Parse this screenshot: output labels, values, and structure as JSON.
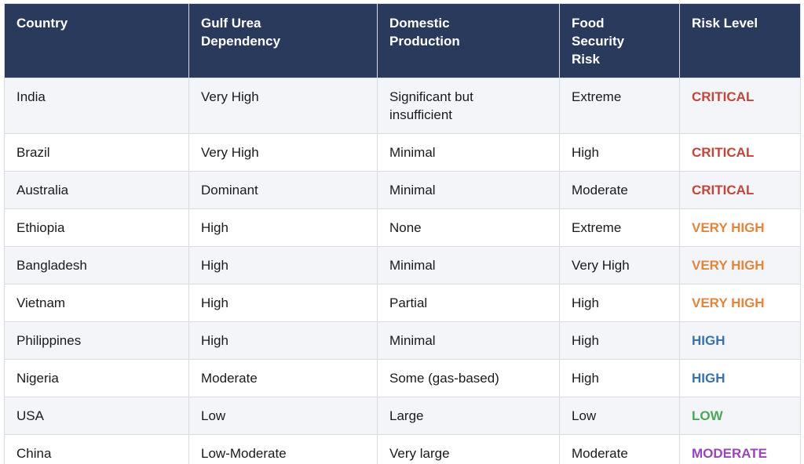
{
  "table": {
    "columns": [
      {
        "key": "country",
        "label": "Country"
      },
      {
        "key": "gulf",
        "label": "Gulf Urea Dependency"
      },
      {
        "key": "domestic",
        "label": "Domestic Production"
      },
      {
        "key": "food",
        "label": "Food Security Risk"
      },
      {
        "key": "risk",
        "label": "Risk Level"
      }
    ],
    "rows": [
      {
        "country": "India",
        "gulf": "Very High",
        "domestic": "Significant but insufficient",
        "food": "Extreme",
        "risk": "CRITICAL",
        "risk_class": "critical"
      },
      {
        "country": "Brazil",
        "gulf": "Very High",
        "domestic": "Minimal",
        "food": "High",
        "risk": "CRITICAL",
        "risk_class": "critical"
      },
      {
        "country": "Australia",
        "gulf": "Dominant",
        "domestic": "Minimal",
        "food": "Moderate",
        "risk": "CRITICAL",
        "risk_class": "critical"
      },
      {
        "country": "Ethiopia",
        "gulf": "High",
        "domestic": "None",
        "food": "Extreme",
        "risk": "VERY HIGH",
        "risk_class": "very_high"
      },
      {
        "country": "Bangladesh",
        "gulf": "High",
        "domestic": "Minimal",
        "food": "Very High",
        "risk": "VERY HIGH",
        "risk_class": "very_high"
      },
      {
        "country": "Vietnam",
        "gulf": "High",
        "domestic": "Partial",
        "food": "High",
        "risk": "VERY HIGH",
        "risk_class": "very_high"
      },
      {
        "country": "Philippines",
        "gulf": "High",
        "domestic": "Minimal",
        "food": "High",
        "risk": "HIGH",
        "risk_class": "high"
      },
      {
        "country": "Nigeria",
        "gulf": "Moderate",
        "domestic": "Some (gas-based)",
        "food": "High",
        "risk": "HIGH",
        "risk_class": "high"
      },
      {
        "country": "USA",
        "gulf": "Low",
        "domestic": "Large",
        "food": "Low",
        "risk": "LOW",
        "risk_class": "low"
      },
      {
        "country": "China",
        "gulf": "Low-Moderate",
        "domestic": "Very large",
        "food": "Moderate",
        "risk": "MODERATE",
        "risk_class": "moderate"
      }
    ]
  },
  "colors": {
    "header_bg": "#2a3a5c",
    "header_text": "#ffffff",
    "row_stripe": "#f4f5f9",
    "border": "#d8dbe1",
    "body_text": "#1a1a1d",
    "critical": "#bf463b",
    "very_high": "#e0863f",
    "high": "#3a72a8",
    "low": "#4aa757",
    "moderate": "#9a44b8"
  }
}
